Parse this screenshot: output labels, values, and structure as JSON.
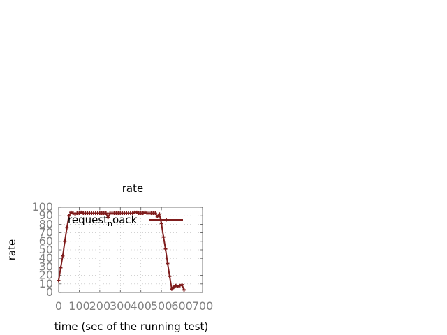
{
  "chart_data": {
    "type": "line",
    "title": "rate",
    "xlabel": "time (sec of the running test)",
    "ylabel": "rate",
    "xlim": [
      0,
      700
    ],
    "ylim": [
      0,
      100
    ],
    "xticks": [
      "0",
      "100",
      "200",
      "300",
      "400",
      "500",
      "600",
      "700"
    ],
    "yticks": [
      "0",
      "10",
      "20",
      "30",
      "40",
      "50",
      "60",
      "70",
      "80",
      "90",
      "100"
    ],
    "grid": true,
    "legend_position": "top-right",
    "legend": {
      "before": "request",
      "sub": "n",
      "after": "oack"
    },
    "line_color": "#7f1d1d",
    "series": [
      {
        "name": "request_noack",
        "x": [
          0,
          10,
          20,
          30,
          40,
          50,
          60,
          70,
          80,
          90,
          100,
          110,
          120,
          130,
          140,
          150,
          160,
          170,
          180,
          190,
          200,
          210,
          220,
          230,
          240,
          250,
          260,
          270,
          280,
          290,
          300,
          310,
          320,
          330,
          340,
          350,
          360,
          370,
          380,
          390,
          400,
          410,
          420,
          430,
          440,
          450,
          460,
          470,
          480,
          490,
          500,
          510,
          520,
          530,
          540,
          550,
          560,
          570,
          580,
          590,
          600,
          610
        ],
        "y": [
          14,
          29,
          43,
          60,
          76,
          90,
          94,
          93,
          92,
          93,
          93,
          94,
          93,
          93,
          93,
          93,
          93,
          93,
          93,
          93,
          93,
          93,
          93,
          93,
          88,
          93,
          93,
          93,
          93,
          93,
          93,
          93,
          93,
          93,
          93,
          93,
          93,
          94,
          94,
          93,
          93,
          93,
          94,
          93,
          93,
          93,
          93,
          93,
          89,
          92,
          81,
          65,
          51,
          34,
          19,
          4,
          6,
          8,
          7,
          8,
          9,
          3
        ]
      }
    ]
  }
}
